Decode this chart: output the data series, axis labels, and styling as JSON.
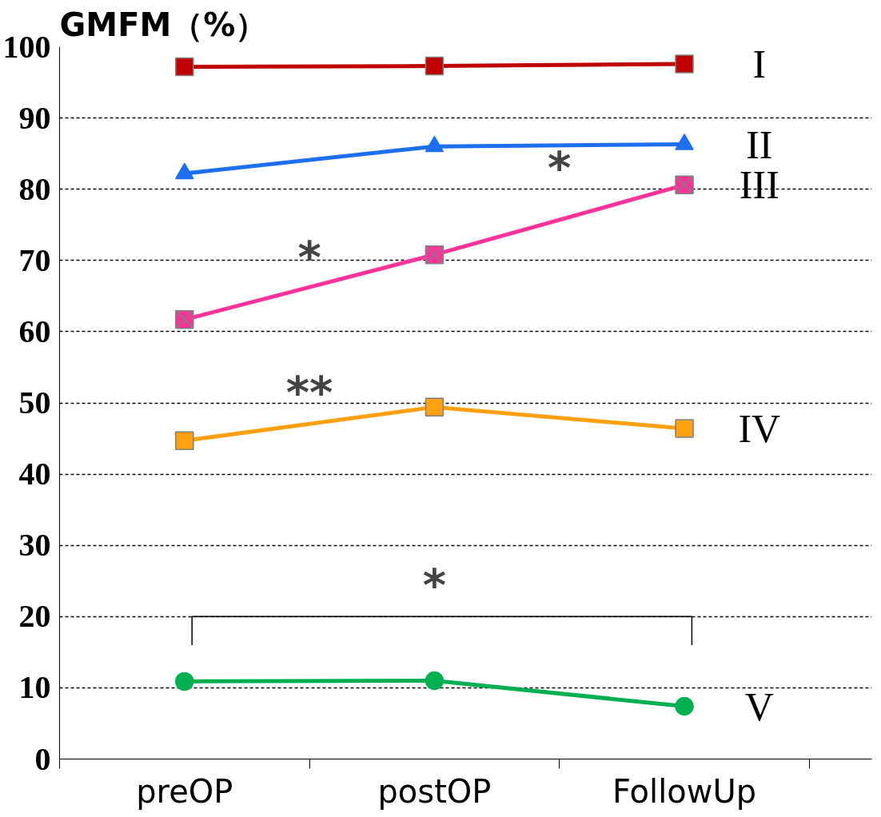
{
  "chart_data": {
    "type": "line",
    "title": "GMFM（%）",
    "categories": [
      "preOP",
      "postOP",
      "FollowUp"
    ],
    "series": [
      {
        "name": "I",
        "color": "#c00000",
        "marker": "square",
        "values": [
          97.2,
          97.3,
          97.6
        ]
      },
      {
        "name": "II",
        "color": "#1e6ff0",
        "marker": "triangle",
        "values": [
          82.2,
          86.0,
          86.3
        ]
      },
      {
        "name": "III",
        "color": "#ff3399",
        "marker": "square_x",
        "values": [
          61.7,
          70.8,
          80.6
        ]
      },
      {
        "name": "IV",
        "color": "#ffa010",
        "marker": "square",
        "values": [
          44.7,
          49.4,
          46.4
        ]
      },
      {
        "name": "V",
        "color": "#00b050",
        "marker": "circle",
        "values": [
          10.9,
          11.0,
          7.4
        ]
      }
    ],
    "ylim": [
      0,
      100
    ],
    "yticks": [
      0,
      10,
      20,
      30,
      40,
      50,
      60,
      70,
      80,
      90,
      100
    ],
    "grid": "y",
    "line_style": "solid",
    "annotations": [
      "*",
      "*",
      "**",
      "*"
    ]
  }
}
